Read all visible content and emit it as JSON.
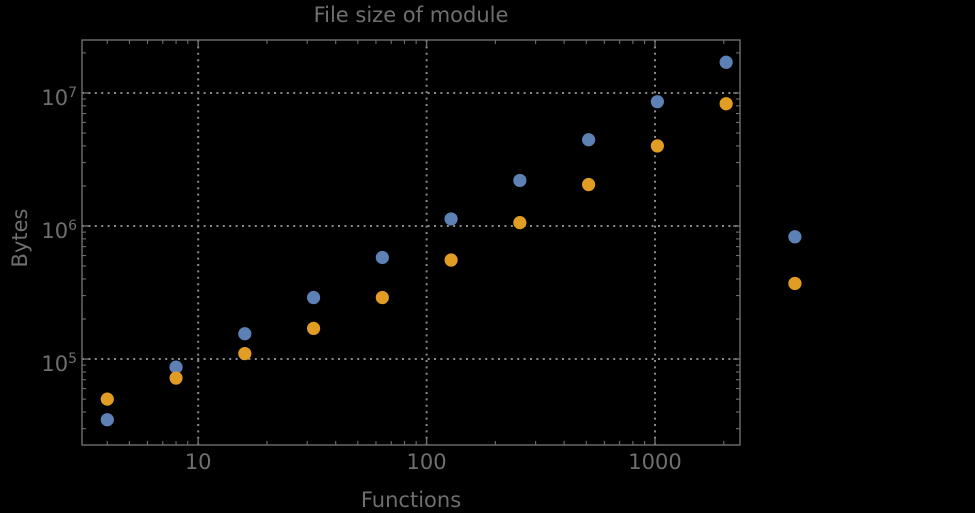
{
  "chart_data": {
    "type": "scatter",
    "title": "File size of module",
    "xlabel": "Functions",
    "ylabel": "Bytes",
    "x_scale": "log",
    "y_scale": "log",
    "grid": "dotted, at powers of ten, both axes",
    "legend": "none",
    "x": [
      4,
      8,
      16,
      32,
      64,
      128,
      256,
      512,
      1024,
      2048,
      4096
    ],
    "series": [
      {
        "name": "blue",
        "color": "#5E81B5",
        "values": [
          35000,
          87000,
          155000,
          290000,
          580000,
          1130000,
          2200000,
          4450000,
          8600000,
          17000000,
          830000
        ]
      },
      {
        "name": "orange",
        "color": "#E19C24",
        "values": [
          50000,
          72000,
          110000,
          170000,
          290000,
          555000,
          1060000,
          2050000,
          4000000,
          8300000,
          370000
        ]
      }
    ],
    "xlim": [
      3.1,
      2355
    ],
    "ylim": [
      22600,
      25000000
    ],
    "x_tick_values": [
      10,
      100,
      1000
    ],
    "x_tick_labels": [
      "10",
      "100",
      "1000"
    ],
    "y_tick_base": "10",
    "y_tick_exponents": [
      5,
      6,
      7
    ],
    "note": "last x pair (4096) is drawn outside the right edge of the plot frame",
    "colors": {
      "background": "#000000",
      "frame": "#6f6f6f",
      "grid": "#8a8a8a",
      "text": "#6f6f6f",
      "point_blue": "#5E81B5",
      "point_orange": "#E19C24"
    }
  }
}
